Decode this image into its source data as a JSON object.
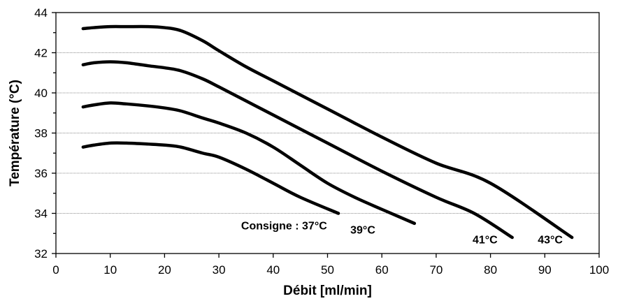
{
  "chart_data": {
    "type": "line",
    "title": "",
    "xlabel": "Débit [ml/min]",
    "ylabel": "Température (°C)",
    "xlim": [
      0,
      100
    ],
    "ylim": [
      32,
      44
    ],
    "x_ticks": [
      0,
      10,
      20,
      30,
      40,
      50,
      60,
      70,
      80,
      90,
      100
    ],
    "y_ticks": [
      32,
      34,
      36,
      38,
      40,
      42,
      44
    ],
    "grid": "horizontal",
    "legend": "none",
    "series": [
      {
        "name": "Consigne : 37°C",
        "x": [
          5,
          7,
          10,
          13,
          17,
          20,
          23,
          27,
          30,
          35,
          40,
          45,
          52
        ],
        "y": [
          37.3,
          37.4,
          37.5,
          37.5,
          37.45,
          37.4,
          37.3,
          37.0,
          36.8,
          36.2,
          35.5,
          34.8,
          34.0
        ]
      },
      {
        "name": "39°C",
        "x": [
          5,
          7,
          10,
          13,
          17,
          20,
          23,
          27,
          30,
          35,
          40,
          45,
          50,
          55,
          60,
          66
        ],
        "y": [
          39.3,
          39.4,
          39.5,
          39.45,
          39.35,
          39.25,
          39.1,
          38.75,
          38.5,
          38.0,
          37.3,
          36.4,
          35.5,
          34.8,
          34.2,
          33.5
        ]
      },
      {
        "name": "41°C",
        "x": [
          5,
          7,
          10,
          13,
          17,
          20,
          23,
          27,
          30,
          35,
          40,
          50,
          60,
          70,
          77,
          84
        ],
        "y": [
          41.4,
          41.5,
          41.55,
          41.5,
          41.35,
          41.25,
          41.1,
          40.7,
          40.3,
          39.6,
          38.9,
          37.5,
          36.1,
          34.8,
          34.0,
          32.8
        ]
      },
      {
        "name": "43°C",
        "x": [
          5,
          7,
          10,
          13,
          17,
          20,
          23,
          27,
          30,
          35,
          40,
          50,
          60,
          70,
          80,
          95
        ],
        "y": [
          43.2,
          43.25,
          43.3,
          43.3,
          43.3,
          43.25,
          43.1,
          42.6,
          42.1,
          41.3,
          40.6,
          39.2,
          37.8,
          36.5,
          35.5,
          32.8
        ]
      }
    ],
    "annotations": [
      {
        "text": "Consigne : 37°C",
        "x": 42,
        "y": 33.2
      },
      {
        "text": "39°C",
        "x": 56.5,
        "y": 33.0
      },
      {
        "text": "41°C",
        "x": 79,
        "y": 32.5
      },
      {
        "text": "43°C",
        "x": 91,
        "y": 32.5
      }
    ]
  }
}
